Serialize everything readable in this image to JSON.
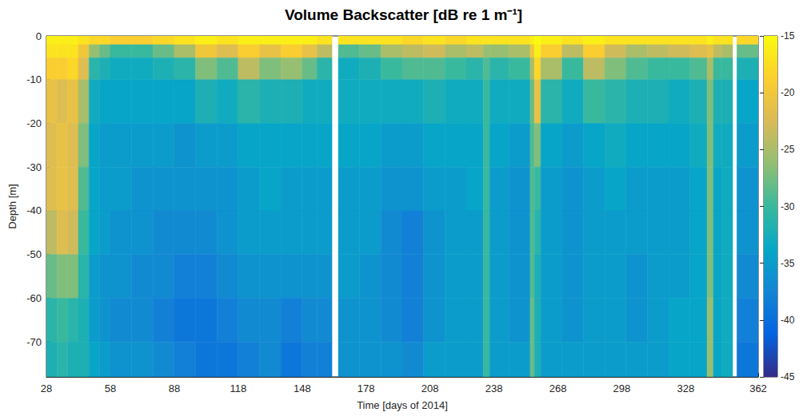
{
  "chart_data": {
    "type": "heatmap",
    "title": "Volume Backscatter [dB re 1 m⁻¹]",
    "x_label": "Time [days of 2014]",
    "y_label": "Depth [m]",
    "xlim": [
      28,
      362
    ],
    "xticks": [
      28,
      58,
      88,
      118,
      148,
      178,
      208,
      238,
      268,
      298,
      328,
      362
    ],
    "ylim": [
      -78,
      0
    ],
    "yticks": [
      0,
      -10,
      -20,
      -30,
      -40,
      -50,
      -60,
      -70
    ],
    "x_edges": [
      28,
      33,
      38,
      43,
      48,
      53,
      58,
      68,
      78,
      88,
      98,
      108,
      118,
      128,
      138,
      148,
      155,
      162,
      165,
      175,
      185,
      195,
      205,
      215,
      225,
      233,
      236,
      245,
      255,
      257,
      260,
      270,
      280,
      290,
      300,
      310,
      320,
      330,
      338,
      341,
      345,
      350,
      352,
      362
    ],
    "y_edges": [
      0,
      -2,
      -5,
      -10,
      -20,
      -30,
      -40,
      -50,
      -60,
      -70,
      -78
    ],
    "cells": [
      [
        -16,
        -17,
        -19,
        -21,
        -22,
        -22,
        -24,
        -28,
        -31,
        -32
      ],
      [
        -16,
        -17,
        -19,
        -22,
        -21,
        -21,
        -22,
        -27,
        -30,
        -31
      ],
      [
        -16,
        -17,
        -18,
        -21,
        -22,
        -22,
        -23,
        -27,
        -31,
        -32
      ],
      [
        -17,
        -20,
        -22,
        -25,
        -27,
        -29,
        -30,
        -31,
        -32,
        -32
      ],
      [
        -18,
        -26,
        -31,
        -33,
        -34,
        -34,
        -34,
        -35,
        -35,
        -34
      ],
      [
        -18,
        -28,
        -32,
        -34,
        -35,
        -35,
        -35,
        -36,
        -36,
        -35
      ],
      [
        -19,
        -30,
        -33,
        -34,
        -35,
        -35,
        -36,
        -36,
        -37,
        -36
      ],
      [
        -19,
        -30,
        -33,
        -34,
        -35,
        -36,
        -36,
        -37,
        -37,
        -36
      ],
      [
        -18,
        -28,
        -32,
        -34,
        -35,
        -36,
        -37,
        -37,
        -38,
        -37
      ],
      [
        -17,
        -25,
        -31,
        -34,
        -36,
        -36,
        -37,
        -38,
        -39,
        -38
      ],
      [
        -16,
        -20,
        -27,
        -32,
        -35,
        -36,
        -37,
        -38,
        -39,
        -39
      ],
      [
        -17,
        -22,
        -29,
        -33,
        -35,
        -36,
        -36,
        -37,
        -38,
        -39
      ],
      [
        -16,
        -19,
        -24,
        -31,
        -34,
        -35,
        -35,
        -36,
        -37,
        -38
      ],
      [
        -16,
        -21,
        -27,
        -32,
        -34,
        -34,
        -35,
        -36,
        -37,
        -37
      ],
      [
        -16,
        -19,
        -26,
        -32,
        -34,
        -35,
        -35,
        -36,
        -38,
        -39
      ],
      [
        -16,
        -21,
        -28,
        -33,
        -34,
        -35,
        -35,
        -36,
        -37,
        -38
      ],
      [
        -17,
        -24,
        -31,
        -33,
        -34,
        -35,
        -35,
        -36,
        -37,
        -38
      ],
      [
        null,
        null,
        null,
        null,
        null,
        null,
        null,
        null,
        null,
        null
      ],
      [
        -17,
        -29,
        -33,
        -33,
        -34,
        -35,
        -35,
        -35,
        -36,
        -36
      ],
      [
        -17,
        -28,
        -32,
        -33,
        -34,
        -35,
        -35,
        -36,
        -36,
        -36
      ],
      [
        -17,
        -25,
        -30,
        -33,
        -35,
        -36,
        -37,
        -37,
        -37,
        -36
      ],
      [
        -18,
        -24,
        -29,
        -33,
        -35,
        -36,
        -38,
        -38,
        -38,
        -37
      ],
      [
        -17,
        -23,
        -29,
        -32,
        -34,
        -35,
        -36,
        -36,
        -36,
        -35
      ],
      [
        -18,
        -25,
        -30,
        -33,
        -34,
        -35,
        -35,
        -35,
        -35,
        -35
      ],
      [
        -17,
        -24,
        -31,
        -33,
        -34,
        -34,
        -35,
        -35,
        -35,
        -35
      ],
      [
        -17,
        -26,
        -29,
        -30,
        -30,
        -30,
        -30,
        -30,
        -30,
        -30
      ],
      [
        -17,
        -26,
        -31,
        -33,
        -34,
        -35,
        -35,
        -35,
        -35,
        -35
      ],
      [
        -17,
        -25,
        -30,
        -33,
        -35,
        -36,
        -36,
        -36,
        -36,
        -35
      ],
      [
        -16,
        -20,
        -25,
        -28,
        -29,
        -29,
        -29,
        -29,
        -28,
        -28
      ],
      [
        -15,
        -16,
        -18,
        -21,
        -27,
        -30,
        -31,
        -32,
        -32,
        -32
      ],
      [
        -16,
        -19,
        -25,
        -31,
        -34,
        -35,
        -35,
        -35,
        -35,
        -35
      ],
      [
        -17,
        -24,
        -30,
        -33,
        -35,
        -36,
        -36,
        -36,
        -36,
        -35
      ],
      [
        -16,
        -19,
        -24,
        -30,
        -34,
        -35,
        -35,
        -35,
        -35,
        -35
      ],
      [
        -17,
        -23,
        -27,
        -31,
        -33,
        -34,
        -35,
        -35,
        -35,
        -35
      ],
      [
        -17,
        -25,
        -29,
        -32,
        -34,
        -35,
        -35,
        -36,
        -36,
        -35
      ],
      [
        -17,
        -24,
        -30,
        -32,
        -34,
        -35,
        -35,
        -35,
        -35,
        -35
      ],
      [
        -17,
        -23,
        -30,
        -33,
        -34,
        -35,
        -35,
        -35,
        -34,
        -34
      ],
      [
        -17,
        -22,
        -29,
        -32,
        -33,
        -34,
        -34,
        -34,
        -34,
        -34
      ],
      [
        -16,
        -21,
        -25,
        -27,
        -27,
        -27,
        -27,
        -27,
        -26,
        -26
      ],
      [
        -17,
        -24,
        -30,
        -32,
        -33,
        -34,
        -34,
        -34,
        -34,
        -34
      ],
      [
        -17,
        -25,
        -30,
        -32,
        -33,
        -33,
        -33,
        -33,
        -33,
        -33
      ],
      [
        null,
        null,
        null,
        null,
        null,
        null,
        null,
        null,
        null,
        null
      ],
      [
        -18,
        -28,
        -32,
        -34,
        -35,
        -36,
        -36,
        -37,
        -38,
        -39
      ]
    ],
    "colorbar": {
      "range": [
        -45,
        -15
      ],
      "ticks": [
        -45,
        -40,
        -35,
        -30,
        -25,
        -20,
        -15
      ]
    }
  }
}
